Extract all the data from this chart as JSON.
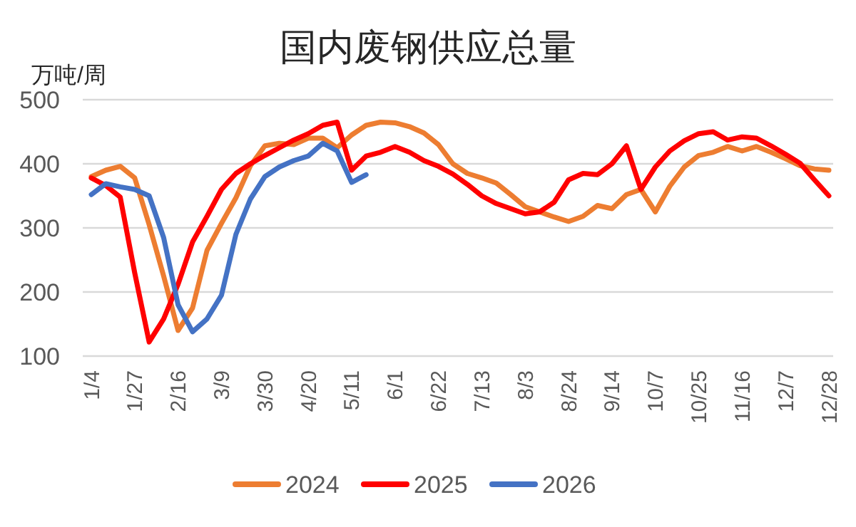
{
  "chart_data": {
    "type": "line",
    "title": "国内废钢供应总量",
    "ylabel": "万吨/周",
    "categories": [
      "1/4",
      null,
      null,
      "1/27",
      null,
      null,
      "2/16",
      null,
      null,
      "3/9",
      null,
      null,
      "3/30",
      null,
      null,
      "4/20",
      null,
      null,
      "5/11",
      null,
      null,
      "6/1",
      null,
      null,
      "6/22",
      null,
      null,
      "7/13",
      null,
      null,
      "8/3",
      null,
      null,
      "8/24",
      null,
      null,
      "9/14",
      null,
      null,
      "10/7",
      null,
      null,
      "10/25",
      null,
      null,
      "11/16",
      null,
      null,
      "12/7",
      null,
      null,
      "12/28"
    ],
    "series": [
      {
        "name": "2024",
        "color": "#ed7d31",
        "values": [
          380,
          390,
          396,
          378,
          305,
          225,
          140,
          175,
          265,
          307,
          347,
          397,
          428,
          432,
          430,
          440,
          440,
          425,
          445,
          460,
          465,
          464,
          458,
          448,
          430,
          400,
          385,
          378,
          370,
          352,
          333,
          325,
          317,
          310,
          318,
          335,
          330,
          352,
          360,
          325,
          365,
          395,
          413,
          418,
          427,
          420,
          427,
          418,
          408,
          397,
          392,
          390
        ]
      },
      {
        "name": "2025",
        "color": "#ff0000",
        "values": [
          378,
          366,
          348,
          230,
          122,
          158,
          212,
          278,
          318,
          360,
          385,
          400,
          413,
          425,
          437,
          447,
          460,
          465,
          390,
          412,
          418,
          427,
          418,
          405,
          396,
          384,
          368,
          350,
          338,
          330,
          322,
          325,
          340,
          375,
          385,
          383,
          400,
          428,
          360,
          395,
          420,
          436,
          447,
          450,
          437,
          442,
          440,
          428,
          415,
          401,
          375,
          350
        ]
      },
      {
        "name": "2026",
        "color": "#4472c4",
        "values": [
          352,
          369,
          364,
          360,
          350,
          285,
          180,
          138,
          158,
          195,
          290,
          345,
          380,
          395,
          405,
          412,
          432,
          420,
          371,
          383,
          null,
          null,
          null,
          null,
          null,
          null,
          null,
          null,
          null,
          null,
          null,
          null,
          null,
          null,
          null,
          null,
          null,
          null,
          null,
          null,
          null,
          null,
          null,
          null,
          null,
          null,
          null,
          null,
          null,
          null,
          null,
          null
        ]
      }
    ],
    "ylim": [
      100,
      500
    ],
    "yticks": [
      100,
      200,
      300,
      400,
      500
    ],
    "grid": "y",
    "legend": "bottom"
  }
}
